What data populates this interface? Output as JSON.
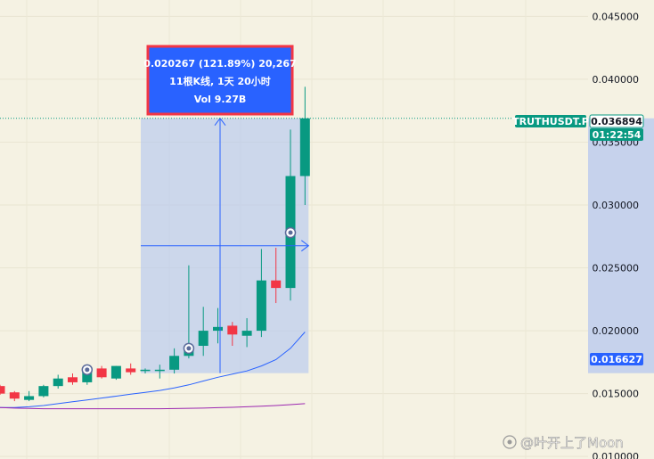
{
  "chart_data": {
    "type": "candlestick",
    "symbol": "TRUTHUSDT.P",
    "last_price": "0.036894",
    "countdown": "01:22:54",
    "range_low_label": "0.016627",
    "y_ticks": [
      "0.045000",
      "0.040000",
      "0.035000",
      "0.030000",
      "0.025000",
      "0.020000",
      "0.015000",
      "0.010000"
    ],
    "ylim": [
      0.0098,
      0.0463
    ],
    "measure_box": {
      "line1": "0.020267 (121.89%) 20,267",
      "line2": "11根K线, 1天 20小时",
      "line3": "Vol 9.27B",
      "low": 0.016627,
      "high": 0.036894,
      "from_index": 10,
      "to_index": 20
    },
    "candles": [
      {
        "o": 0.0156,
        "h": 0.0157,
        "l": 0.0149,
        "c": 0.015
      },
      {
        "o": 0.0151,
        "h": 0.0152,
        "l": 0.0144,
        "c": 0.0146
      },
      {
        "o": 0.0145,
        "h": 0.0152,
        "l": 0.0144,
        "c": 0.0148
      },
      {
        "o": 0.0148,
        "h": 0.0157,
        "l": 0.0147,
        "c": 0.0156
      },
      {
        "o": 0.0156,
        "h": 0.0165,
        "l": 0.0154,
        "c": 0.0162
      },
      {
        "o": 0.0163,
        "h": 0.0166,
        "l": 0.0157,
        "c": 0.0159
      },
      {
        "o": 0.0159,
        "h": 0.0172,
        "l": 0.0157,
        "c": 0.0169
      },
      {
        "o": 0.017,
        "h": 0.0172,
        "l": 0.0162,
        "c": 0.0163
      },
      {
        "o": 0.0162,
        "h": 0.0172,
        "l": 0.0161,
        "c": 0.0172
      },
      {
        "o": 0.017,
        "h": 0.0174,
        "l": 0.0165,
        "c": 0.0167
      },
      {
        "o": 0.0168,
        "h": 0.017,
        "l": 0.0166,
        "c": 0.0169
      },
      {
        "o": 0.0168,
        "h": 0.0173,
        "l": 0.0162,
        "c": 0.0169
      },
      {
        "o": 0.0169,
        "h": 0.0186,
        "l": 0.0166,
        "c": 0.018
      },
      {
        "o": 0.018,
        "h": 0.0252,
        "l": 0.0178,
        "c": 0.0188
      },
      {
        "o": 0.0188,
        "h": 0.0219,
        "l": 0.018,
        "c": 0.02
      },
      {
        "o": 0.02,
        "h": 0.0218,
        "l": 0.019,
        "c": 0.0203
      },
      {
        "o": 0.0204,
        "h": 0.0207,
        "l": 0.0188,
        "c": 0.0197
      },
      {
        "o": 0.0196,
        "h": 0.021,
        "l": 0.0187,
        "c": 0.02
      },
      {
        "o": 0.02,
        "h": 0.0265,
        "l": 0.0195,
        "c": 0.024
      },
      {
        "o": 0.024,
        "h": 0.0266,
        "l": 0.0222,
        "c": 0.0234
      },
      {
        "o": 0.0234,
        "h": 0.036,
        "l": 0.0224,
        "c": 0.0323
      },
      {
        "o": 0.0323,
        "h": 0.0394,
        "l": 0.03,
        "c": 0.03689
      }
    ],
    "ma_series": [
      {
        "color": "#2962ff",
        "values": [
          0.0139,
          0.0139,
          0.01395,
          0.01405,
          0.0142,
          0.01435,
          0.0145,
          0.01465,
          0.0148,
          0.01495,
          0.0151,
          0.01525,
          0.01545,
          0.0157,
          0.016,
          0.0163,
          0.01655,
          0.0168,
          0.0172,
          0.0177,
          0.0186,
          0.0199
        ]
      },
      {
        "color": "#9c27b0",
        "values": [
          0.0139,
          0.01385,
          0.01382,
          0.0138,
          0.0138,
          0.0138,
          0.0138,
          0.0138,
          0.0138,
          0.0138,
          0.0138,
          0.0138,
          0.01381,
          0.01383,
          0.01385,
          0.01388,
          0.01391,
          0.01395,
          0.014,
          0.01405,
          0.01412,
          0.0142
        ]
      }
    ],
    "colors": {
      "up": "#089981",
      "down": "#f23645",
      "measure_fill": "#b5c7ef",
      "measure_line": "#2962ff",
      "price_tag": "#089981",
      "low_tag": "#2962ff",
      "box_bg": "#2962ff",
      "box_border": "#f23645"
    }
  },
  "watermark": "@叶开上了Moon"
}
